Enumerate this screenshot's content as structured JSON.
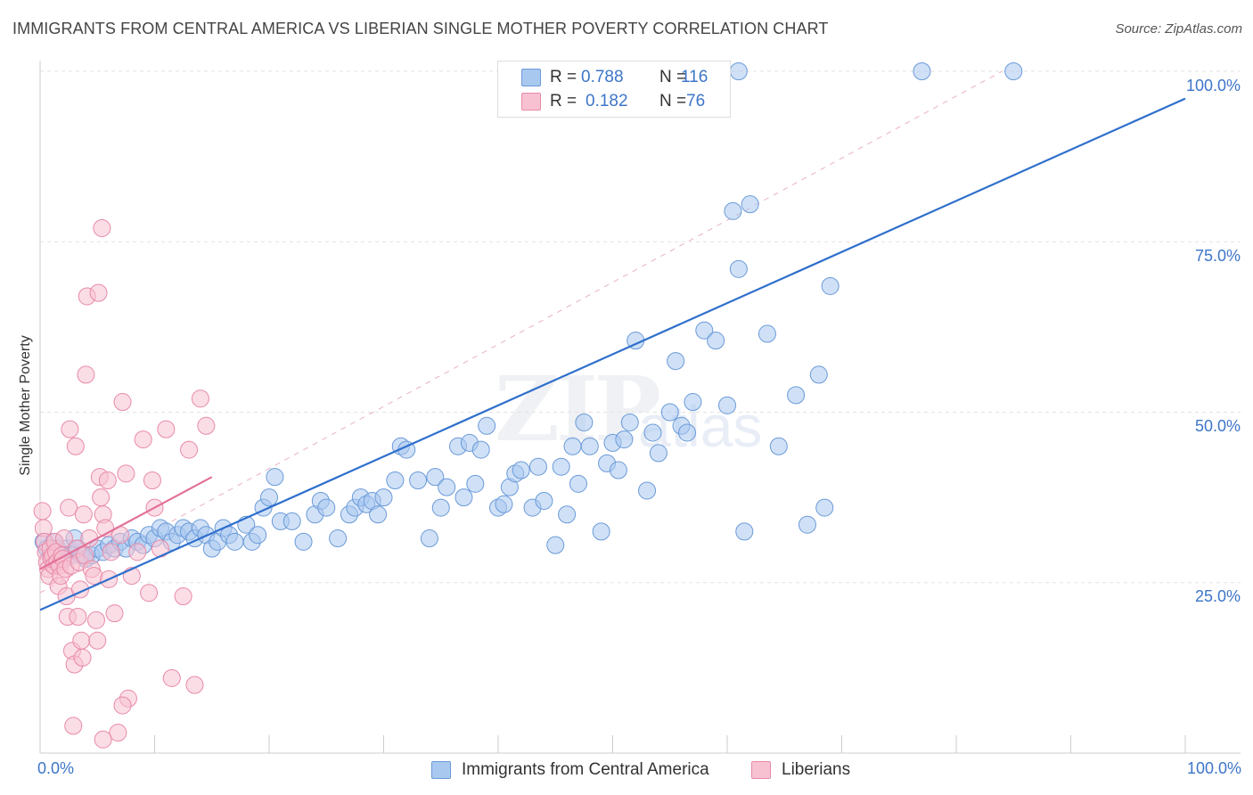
{
  "title": "IMMIGRANTS FROM CENTRAL AMERICA VS LIBERIAN SINGLE MOTHER POVERTY CORRELATION CHART",
  "source": "Source: ZipAtlas.com",
  "watermark_zip": "ZIP",
  "watermark_atlas": "atlas",
  "legend_top": [
    {
      "r_label": "R =",
      "r_value": "0.788",
      "n_label": "N =",
      "n_value": "116",
      "color": "#a9c8f0",
      "stroke": "#6a9ad8"
    },
    {
      "r_label": "R =",
      "r_value": "0.182",
      "n_label": "N =",
      "n_value": "76",
      "color": "#f7c1d2",
      "stroke": "#e88aa8"
    }
  ],
  "legend_bottom": [
    {
      "label": "Immigrants from Central America",
      "color": "#a9c8f0",
      "stroke": "#6a9ad8"
    },
    {
      "label": "Liberians",
      "color": "#f7c1d2",
      "stroke": "#e88aa8"
    }
  ],
  "chart_data": {
    "type": "scatter",
    "title": "IMMIGRANTS FROM CENTRAL AMERICA VS LIBERIAN SINGLE MOTHER POVERTY CORRELATION CHART",
    "xlabel": "",
    "ylabel": "Single Mother Poverty",
    "xlim": [
      0,
      100
    ],
    "ylim": [
      0,
      100
    ],
    "x_tick_labels": [
      "0.0%",
      "100.0%"
    ],
    "y_ticks": [
      25,
      50,
      75,
      100
    ],
    "y_tick_labels": [
      "25.0%",
      "50.0%",
      "75.0%",
      "100.0%"
    ],
    "grid": true,
    "series": [
      {
        "name": "Immigrants from Central America",
        "color": "#a9c8f0",
        "stroke": "#6a9ad8",
        "trend": {
          "x0": 0,
          "y0": 21.0,
          "x1": 100,
          "y1": 96.0,
          "color": "#2f6fcc"
        },
        "points": [
          [
            0.3,
            31
          ],
          [
            0.6,
            30
          ],
          [
            0.9,
            29
          ],
          [
            1.2,
            31
          ],
          [
            1.5,
            30
          ],
          [
            1.8,
            29
          ],
          [
            2.1,
            28.5
          ],
          [
            2.4,
            30
          ],
          [
            2.7,
            29
          ],
          [
            3.0,
            31.5
          ],
          [
            3.3,
            30
          ],
          [
            3.6,
            29
          ],
          [
            4.0,
            28.5
          ],
          [
            4.5,
            29
          ],
          [
            5.0,
            30
          ],
          [
            5.5,
            29.5
          ],
          [
            6.0,
            30.5
          ],
          [
            6.5,
            30
          ],
          [
            7.0,
            31
          ],
          [
            7.5,
            30
          ],
          [
            8.0,
            31.5
          ],
          [
            8.5,
            31
          ],
          [
            9.0,
            30.5
          ],
          [
            9.5,
            32
          ],
          [
            10.0,
            31.5
          ],
          [
            10.5,
            33
          ],
          [
            11.0,
            32.5
          ],
          [
            11.5,
            31
          ],
          [
            12.0,
            32
          ],
          [
            12.5,
            33
          ],
          [
            13.0,
            32.5
          ],
          [
            13.5,
            31.5
          ],
          [
            14.0,
            33
          ],
          [
            14.5,
            32
          ],
          [
            15.0,
            30
          ],
          [
            15.5,
            31
          ],
          [
            16.0,
            33
          ],
          [
            16.5,
            32
          ],
          [
            17.0,
            31
          ],
          [
            18.0,
            33.5
          ],
          [
            18.5,
            31
          ],
          [
            19.0,
            32
          ],
          [
            19.5,
            36
          ],
          [
            20.0,
            37.5
          ],
          [
            20.5,
            40.5
          ],
          [
            21.0,
            34
          ],
          [
            22.0,
            34
          ],
          [
            23.0,
            31
          ],
          [
            24.0,
            35
          ],
          [
            24.5,
            37
          ],
          [
            25.0,
            36
          ],
          [
            26.0,
            31.5
          ],
          [
            27.0,
            35
          ],
          [
            27.5,
            36
          ],
          [
            28.0,
            37.5
          ],
          [
            28.5,
            36.5
          ],
          [
            29.0,
            37
          ],
          [
            29.5,
            35
          ],
          [
            30.0,
            37.5
          ],
          [
            31.0,
            40
          ],
          [
            31.5,
            45
          ],
          [
            32.0,
            44.5
          ],
          [
            33.0,
            40
          ],
          [
            34.0,
            31.5
          ],
          [
            34.5,
            40.5
          ],
          [
            35.0,
            36
          ],
          [
            35.5,
            39
          ],
          [
            36.5,
            45
          ],
          [
            37.0,
            37.5
          ],
          [
            37.5,
            45.5
          ],
          [
            38.0,
            39.5
          ],
          [
            38.5,
            44.5
          ],
          [
            39.0,
            48
          ],
          [
            40.0,
            36
          ],
          [
            40.5,
            36.5
          ],
          [
            41.0,
            39
          ],
          [
            41.5,
            41
          ],
          [
            42.0,
            41.5
          ],
          [
            43.0,
            36
          ],
          [
            43.5,
            42
          ],
          [
            44.0,
            37
          ],
          [
            45.0,
            30.5
          ],
          [
            45.5,
            42
          ],
          [
            46.0,
            35
          ],
          [
            46.5,
            45
          ],
          [
            47.0,
            39.5
          ],
          [
            47.5,
            48.5
          ],
          [
            48.0,
            45
          ],
          [
            49.0,
            32.5
          ],
          [
            49.5,
            42.5
          ],
          [
            50.0,
            45.5
          ],
          [
            50.5,
            41.5
          ],
          [
            51.0,
            46
          ],
          [
            51.5,
            48.5
          ],
          [
            52.0,
            60.5
          ],
          [
            53.0,
            38.5
          ],
          [
            53.5,
            47
          ],
          [
            54.0,
            44
          ],
          [
            55.0,
            50
          ],
          [
            55.5,
            57.5
          ],
          [
            56.0,
            48
          ],
          [
            56.5,
            47
          ],
          [
            57.0,
            51.5
          ],
          [
            58.0,
            62
          ],
          [
            59.0,
            60.5
          ],
          [
            60.0,
            51
          ],
          [
            60.5,
            79.5
          ],
          [
            61.0,
            71
          ],
          [
            61.5,
            32.5
          ],
          [
            62.0,
            80.5
          ],
          [
            63.5,
            61.5
          ],
          [
            64.5,
            45
          ],
          [
            66.0,
            52.5
          ],
          [
            67.0,
            33.5
          ],
          [
            68.0,
            55.5
          ],
          [
            68.5,
            36
          ],
          [
            69.0,
            68.5
          ],
          [
            77.0,
            100
          ],
          [
            85.0,
            100
          ],
          [
            61.0,
            100
          ]
        ]
      },
      {
        "name": "Liberians",
        "color": "#f7c1d2",
        "stroke": "#e88aa8",
        "trend": {
          "x0": 0,
          "y0": 27.0,
          "x1": 15,
          "y1": 40.5,
          "color": "#e2709a"
        },
        "points": [
          [
            0.2,
            35.5
          ],
          [
            0.3,
            33
          ],
          [
            0.4,
            31
          ],
          [
            0.5,
            29.5
          ],
          [
            0.6,
            28
          ],
          [
            0.7,
            27
          ],
          [
            0.8,
            26
          ],
          [
            0.9,
            30
          ],
          [
            1.0,
            28.5
          ],
          [
            1.1,
            29
          ],
          [
            1.2,
            27.5
          ],
          [
            1.3,
            31
          ],
          [
            1.4,
            29.5
          ],
          [
            1.5,
            28
          ],
          [
            1.6,
            24.5
          ],
          [
            1.7,
            27.5
          ],
          [
            1.8,
            26
          ],
          [
            1.9,
            29
          ],
          [
            2.0,
            28.5
          ],
          [
            2.1,
            31.5
          ],
          [
            2.2,
            27
          ],
          [
            2.3,
            23
          ],
          [
            2.4,
            20
          ],
          [
            2.5,
            36
          ],
          [
            2.6,
            47.5
          ],
          [
            2.7,
            27.5
          ],
          [
            2.8,
            15
          ],
          [
            2.9,
            4
          ],
          [
            3.0,
            13
          ],
          [
            3.1,
            45
          ],
          [
            3.2,
            30
          ],
          [
            3.3,
            20
          ],
          [
            3.4,
            28
          ],
          [
            3.5,
            24
          ],
          [
            3.6,
            16.5
          ],
          [
            3.7,
            14
          ],
          [
            3.8,
            35
          ],
          [
            3.9,
            29
          ],
          [
            4.0,
            55.5
          ],
          [
            4.1,
            67
          ],
          [
            4.3,
            31.5
          ],
          [
            4.5,
            27
          ],
          [
            4.7,
            26
          ],
          [
            4.9,
            19.5
          ],
          [
            5.0,
            16.5
          ],
          [
            5.1,
            67.5
          ],
          [
            5.2,
            40.5
          ],
          [
            5.3,
            37.5
          ],
          [
            5.4,
            77
          ],
          [
            5.5,
            35
          ],
          [
            5.7,
            33
          ],
          [
            5.9,
            40
          ],
          [
            6.0,
            25.5
          ],
          [
            6.2,
            29.5
          ],
          [
            6.5,
            20.5
          ],
          [
            7.0,
            32
          ],
          [
            7.2,
            51.5
          ],
          [
            7.5,
            41
          ],
          [
            7.7,
            8
          ],
          [
            8.0,
            26
          ],
          [
            8.5,
            29.5
          ],
          [
            9.0,
            46
          ],
          [
            9.5,
            23.5
          ],
          [
            9.8,
            40
          ],
          [
            10.0,
            36
          ],
          [
            10.5,
            30
          ],
          [
            11.0,
            47.5
          ],
          [
            12.5,
            23
          ],
          [
            13.0,
            44.5
          ],
          [
            14.0,
            52
          ],
          [
            14.5,
            48
          ],
          [
            11.5,
            11
          ],
          [
            7.2,
            7
          ],
          [
            6.8,
            3
          ],
          [
            5.5,
            2
          ],
          [
            13.5,
            10
          ]
        ]
      }
    ]
  }
}
